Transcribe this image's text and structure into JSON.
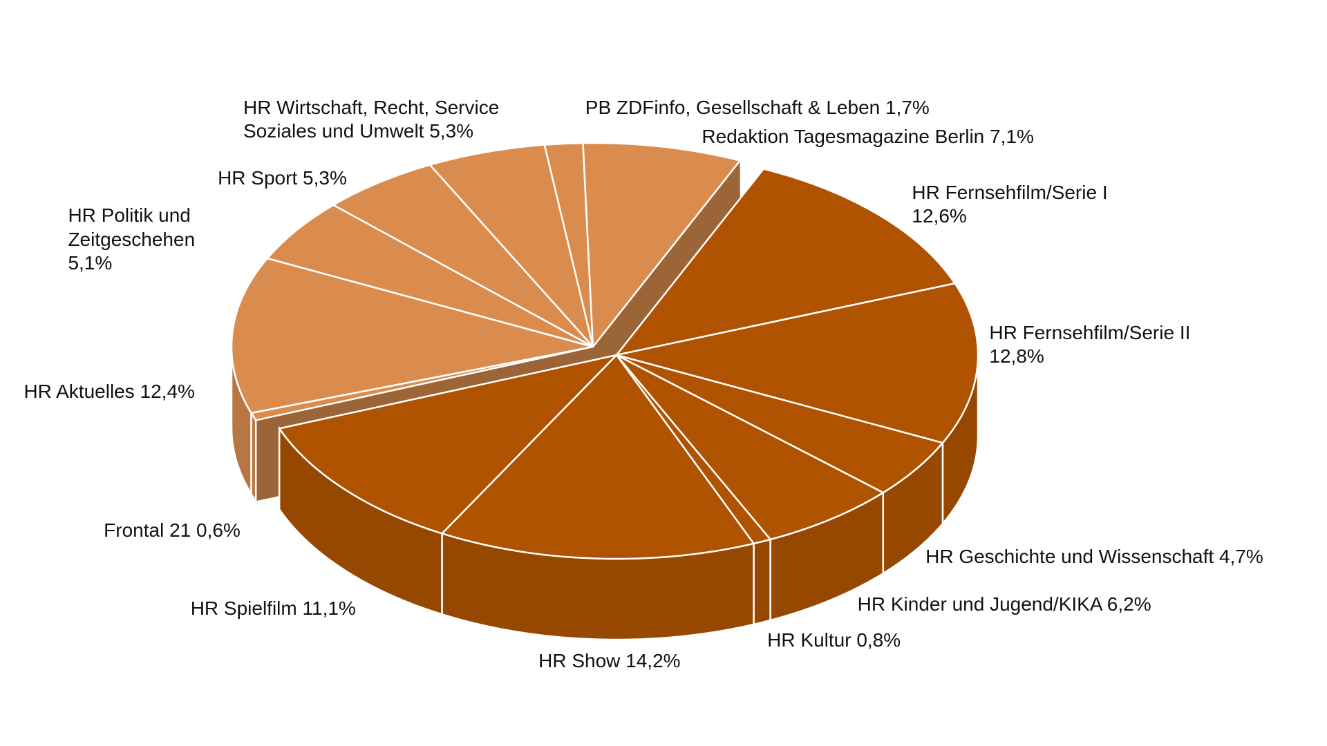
{
  "chart_data": {
    "type": "pie3d",
    "categories": [
      "HR Fernsehfilm/Serie I",
      "HR Fernsehfilm/Serie II",
      "HR Geschichte und Wissenschaft",
      "HR Kinder und Jugend/KIKA",
      "HR Kultur",
      "HR Show",
      "HR Spielfilm",
      "Frontal 21",
      "HR Aktuelles",
      "HR Politik und Zeitgeschehen",
      "HR Sport",
      "HR Wirtschaft, Recht, Service Soziales und Umwelt",
      "PB ZDFinfo, Gesellschaft & Leben",
      "Redaktion Tagesmagazine Berlin"
    ],
    "values": [
      12.6,
      12.8,
      4.7,
      6.2,
      0.8,
      14.2,
      11.1,
      0.6,
      12.4,
      5.1,
      5.3,
      5.3,
      1.7,
      7.1
    ],
    "value_labels": [
      "12,6%",
      "12,8%",
      "4,7%",
      "6,2%",
      "0,8%",
      "14,2%",
      "11,1%",
      "0,6%",
      "12,4%",
      "5,1%",
      "5,3%",
      "5,3%",
      "1,7%",
      "7,1%"
    ],
    "colors": [
      "#b05300",
      "#b05300",
      "#b05300",
      "#b05300",
      "#b05300",
      "#b05300",
      "#b05300",
      "#d98c4e",
      "#d98c4e",
      "#d98c4e",
      "#d98c4e",
      "#d98c4e",
      "#d98c4e",
      "#d98c4e"
    ]
  }
}
